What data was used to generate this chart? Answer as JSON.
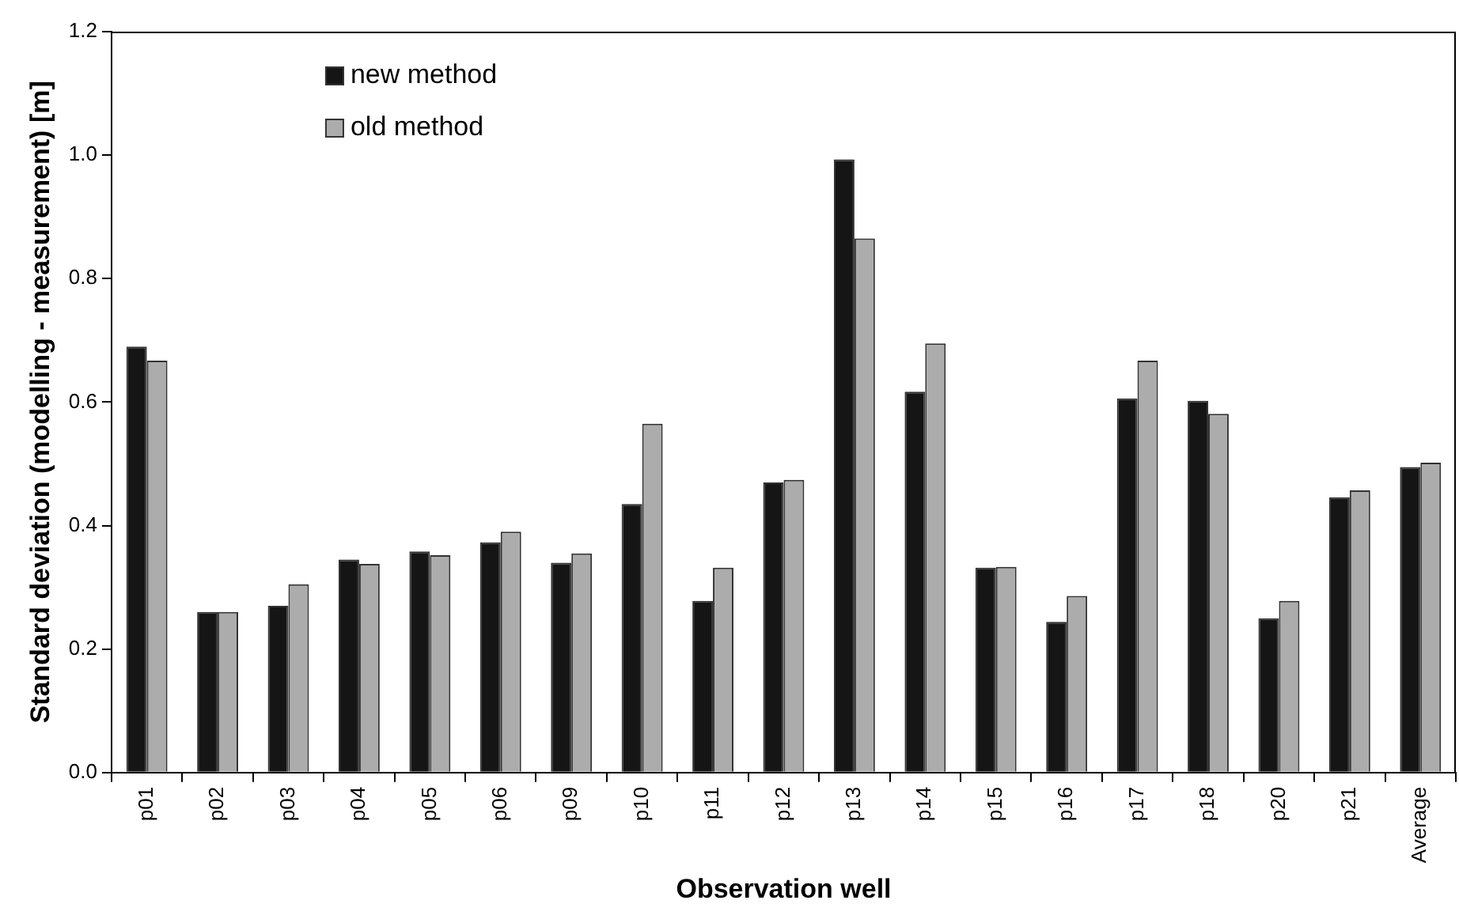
{
  "chart_data": {
    "type": "bar",
    "xlabel": "Observation well",
    "ylabel": "Standard deviation (modelling - measurement) [m]",
    "categories": [
      "p01",
      "p02",
      "p03",
      "p04",
      "p05",
      "p06",
      "p09",
      "p10",
      "p11",
      "p12",
      "p13",
      "p14",
      "p15",
      "p16",
      "p17",
      "p18",
      "p20",
      "p21",
      "Average"
    ],
    "series": [
      {
        "name": "new method",
        "color": "#151515",
        "values": [
          0.69,
          0.26,
          0.27,
          0.345,
          0.358,
          0.373,
          0.34,
          0.435,
          0.278,
          0.47,
          0.993,
          0.617,
          0.332,
          0.244,
          0.606,
          0.602,
          0.25,
          0.446,
          0.495
        ]
      },
      {
        "name": "old method",
        "color": "#acacac",
        "values": [
          0.667,
          0.26,
          0.305,
          0.338,
          0.352,
          0.39,
          0.355,
          0.565,
          0.332,
          0.474,
          0.865,
          0.695,
          0.333,
          0.286,
          0.667,
          0.581,
          0.278,
          0.457,
          0.502
        ]
      }
    ],
    "ylim": [
      0,
      1.2
    ],
    "yticks": [
      {
        "value": 0,
        "label": "0.0"
      },
      {
        "value": 0.2,
        "label": "0.2"
      },
      {
        "value": 0.4,
        "label": "0.4"
      },
      {
        "value": 0.6,
        "label": "0.6"
      },
      {
        "value": 0.8,
        "label": "0.8"
      },
      {
        "value": 1,
        "label": "1.0"
      },
      {
        "value": 1.2,
        "label": "1.2"
      }
    ],
    "grid": false,
    "legend": "top left"
  }
}
